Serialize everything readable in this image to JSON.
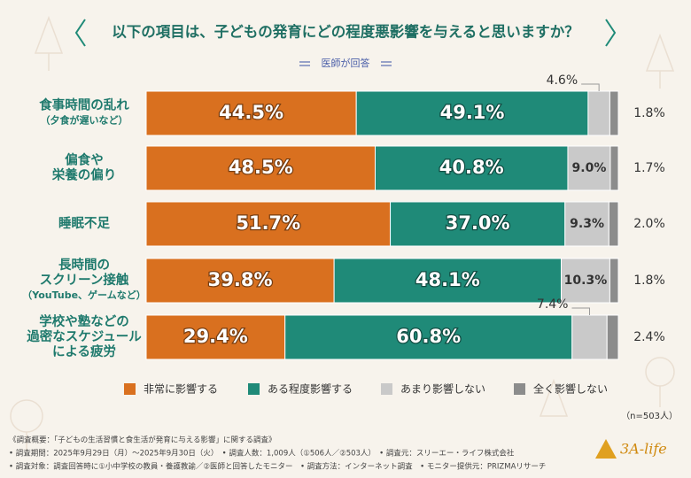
{
  "chart_data": {
    "type": "stacked-bar-horizontal",
    "title": "以下の項目は、子どもの発育にどの程度悪影響を与えると思いますか？",
    "subtitle": "医師が回答",
    "categories": [
      [
        "食事時間の乱れ"
      ],
      [
        "偏食や",
        "栄養の偏り"
      ],
      [
        "睡眠不足"
      ],
      [
        "長時間の",
        "スクリーン接触"
      ],
      [
        "学校や塾などの",
        "過密なスケジュール",
        "による疲労"
      ]
    ],
    "category_notes": [
      "（夕食が遅いなど）",
      null,
      null,
      "（YouTube、ゲームなど）",
      null
    ],
    "xlim": [
      0,
      100
    ],
    "series": [
      {
        "name": "非常に影響する",
        "color": "#d9701f",
        "values": [
          44.5,
          48.5,
          51.7,
          39.8,
          29.4
        ],
        "value_labels": [
          "44.5%",
          "48.5%",
          "51.7%",
          "39.8%",
          "29.4%"
        ]
      },
      {
        "name": "ある程度影響する",
        "color": "#1f8a78",
        "values": [
          49.1,
          40.8,
          37.0,
          48.1,
          60.8
        ],
        "value_labels": [
          "49.1%",
          "40.8%",
          "37.0%",
          "48.1%",
          "60.8%"
        ]
      },
      {
        "name": "あまり影響しない",
        "color": "#c9c9c9",
        "values": [
          4.6,
          9.0,
          9.3,
          10.3,
          7.4
        ],
        "value_labels": [
          "4.6%",
          "9.0%",
          "9.3%",
          "10.3%",
          "7.4%"
        ]
      },
      {
        "name": "全く影響しない",
        "color": "#8c8c8c",
        "values": [
          1.8,
          1.7,
          2.0,
          1.8,
          2.4
        ],
        "value_labels": [
          "1.8%",
          "1.7%",
          "2.0%",
          "1.8%",
          "2.4%"
        ]
      }
    ],
    "sample_note": "（n=503人）",
    "footnotes": [
      "《調査概要：「子どもの生活習慣と食生活が発育に与える影響」に関する調査》",
      "• 調査期間：2025年9月29日（月）～2025年9月30日（火）　• 調査人数：1,009人（①506人／②503人）　• 調査元：スリーエー・ライフ株式会社",
      "• 調査対象：調査回答時に①小中学校の教員・養護教諭／②医師と回答したモニター　• 調査方法：インターネット調査　• モニター提供元：PRIZMAリサーチ"
    ],
    "logo": "3A-life"
  }
}
